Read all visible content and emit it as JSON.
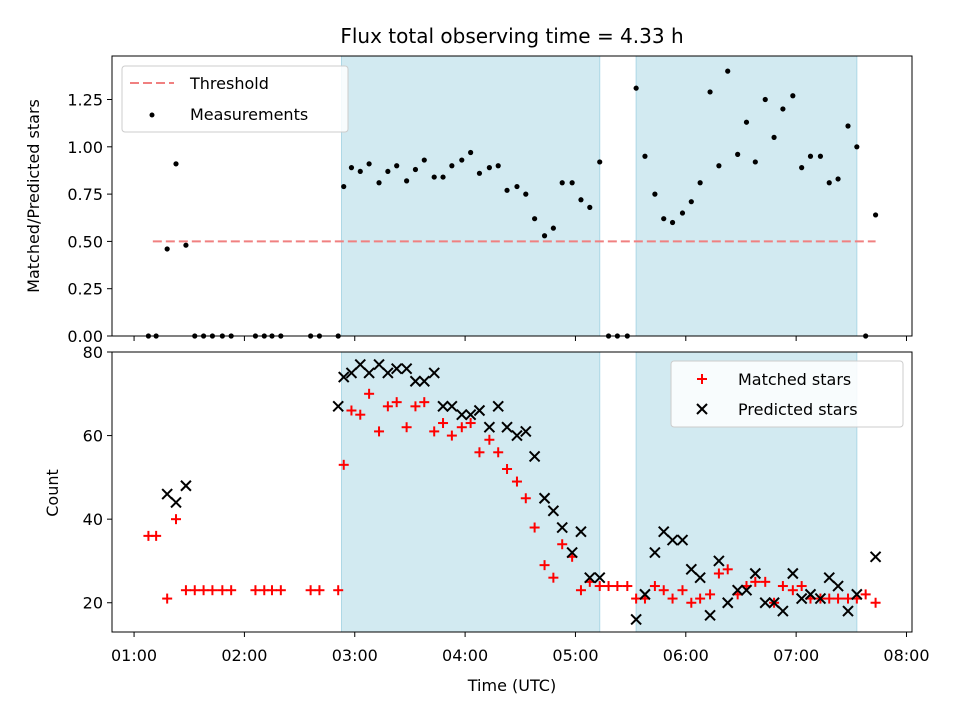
{
  "title": "Flux total observing time = 4.33 h",
  "colors": {
    "threshold": "#f08080",
    "measurement": "#000000",
    "matched": "#ff0000",
    "predicted": "#000000",
    "shade": "#add8e6"
  },
  "chart_data": [
    {
      "type": "scatter",
      "ylabel": "Matched/Predicted stars",
      "xlabel": "",
      "x_unit": "hours UTC",
      "xlim": [
        0.8,
        8.05
      ],
      "ylim": [
        0,
        1.48
      ],
      "yticks": [
        0.0,
        0.25,
        0.5,
        0.75,
        1.0,
        1.25
      ],
      "ytick_labels": [
        "0.00",
        "0.25",
        "0.50",
        "0.75",
        "1.00",
        "1.25"
      ],
      "xticks": [
        1,
        2,
        3,
        4,
        5,
        6,
        7,
        8
      ],
      "shaded_ranges": [
        [
          2.88,
          5.22
        ],
        [
          5.55,
          7.55
        ]
      ],
      "legend_position": "upper-left",
      "threshold": {
        "name": "Threshold",
        "value": 0.5,
        "x_range": [
          1.17,
          7.72
        ]
      },
      "series": [
        {
          "name": "Measurements",
          "x": [
            1.13,
            1.2,
            1.3,
            1.38,
            1.47,
            1.55,
            1.63,
            1.71,
            1.8,
            1.88,
            2.1,
            2.18,
            2.25,
            2.33,
            2.6,
            2.68,
            2.85,
            2.9,
            2.97,
            3.05,
            3.13,
            3.22,
            3.3,
            3.38,
            3.47,
            3.55,
            3.63,
            3.72,
            3.8,
            3.88,
            3.97,
            4.05,
            4.13,
            4.22,
            4.3,
            4.38,
            4.47,
            4.55,
            4.63,
            4.72,
            4.8,
            4.88,
            4.97,
            5.05,
            5.13,
            5.22,
            5.3,
            5.38,
            5.47,
            5.55,
            5.63,
            5.72,
            5.8,
            5.88,
            5.97,
            6.05,
            6.13,
            6.22,
            6.3,
            6.38,
            6.47,
            6.55,
            6.63,
            6.72,
            6.8,
            6.88,
            6.97,
            7.05,
            7.13,
            7.22,
            7.3,
            7.38,
            7.47,
            7.55,
            7.63,
            7.72
          ],
          "y": [
            0,
            0,
            0.46,
            0.91,
            0.48,
            0,
            0,
            0,
            0,
            0,
            0,
            0,
            0,
            0,
            0,
            0,
            0,
            0.79,
            0.89,
            0.87,
            0.91,
            0.81,
            0.87,
            0.9,
            0.82,
            0.88,
            0.93,
            0.84,
            0.84,
            0.9,
            0.93,
            0.97,
            0.86,
            0.89,
            0.9,
            0.77,
            0.79,
            0.75,
            0.62,
            0.53,
            0.57,
            0.81,
            0.81,
            0.72,
            0.68,
            0.92,
            0,
            0,
            0,
            1.31,
            0.95,
            0.75,
            0.62,
            0.6,
            0.65,
            0.71,
            0.81,
            1.29,
            0.9,
            1.4,
            0.96,
            1.13,
            0.92,
            1.25,
            1.05,
            1.2,
            1.27,
            0.89,
            0.95,
            0.95,
            0.81,
            0.83,
            1.11,
            1.0,
            0,
            0.64
          ]
        }
      ]
    },
    {
      "type": "scatter",
      "ylabel": "Count",
      "xlabel": "Time (UTC)",
      "x_unit": "hours UTC",
      "xlim": [
        0.8,
        8.05
      ],
      "ylim": [
        13,
        80
      ],
      "yticks": [
        20,
        40,
        60,
        80
      ],
      "ytick_labels": [
        "20",
        "40",
        "60",
        "80"
      ],
      "xticks": [
        1,
        2,
        3,
        4,
        5,
        6,
        7,
        8
      ],
      "xtick_labels": [
        "01:00",
        "02:00",
        "03:00",
        "04:00",
        "05:00",
        "06:00",
        "07:00",
        "08:00"
      ],
      "shaded_ranges": [
        [
          2.88,
          5.22
        ],
        [
          5.55,
          7.55
        ]
      ],
      "legend_position": "upper-right",
      "series": [
        {
          "name": "Matched stars",
          "x": [
            1.13,
            1.2,
            1.3,
            1.38,
            1.47,
            1.55,
            1.63,
            1.71,
            1.8,
            1.88,
            2.1,
            2.18,
            2.25,
            2.33,
            2.6,
            2.68,
            2.85,
            2.9,
            2.97,
            3.05,
            3.13,
            3.22,
            3.3,
            3.38,
            3.47,
            3.55,
            3.63,
            3.72,
            3.8,
            3.88,
            3.97,
            4.05,
            4.13,
            4.22,
            4.3,
            4.38,
            4.47,
            4.55,
            4.63,
            4.72,
            4.8,
            4.88,
            4.97,
            5.05,
            5.13,
            5.22,
            5.3,
            5.38,
            5.47,
            5.55,
            5.63,
            5.72,
            5.8,
            5.88,
            5.97,
            6.05,
            6.13,
            6.22,
            6.3,
            6.38,
            6.47,
            6.55,
            6.63,
            6.72,
            6.8,
            6.88,
            6.97,
            7.05,
            7.13,
            7.22,
            7.3,
            7.38,
            7.47,
            7.55,
            7.63,
            7.72
          ],
          "y": [
            36,
            36,
            21,
            40,
            23,
            23,
            23,
            23,
            23,
            23,
            23,
            23,
            23,
            23,
            23,
            23,
            23,
            53,
            66,
            65,
            70,
            61,
            67,
            68,
            62,
            67,
            68,
            61,
            63,
            60,
            62,
            63,
            56,
            59,
            56,
            52,
            49,
            45,
            38,
            29,
            26,
            34,
            31,
            23,
            25,
            24,
            24,
            24,
            24,
            21,
            21,
            24,
            23,
            21,
            23,
            20,
            21,
            22,
            27,
            28,
            22,
            24,
            25,
            25,
            20,
            24,
            23,
            24,
            21,
            21,
            21,
            21,
            21,
            21,
            22,
            20
          ]
        },
        {
          "name": "Predicted stars",
          "x": [
            1.3,
            1.38,
            1.47,
            2.85,
            2.9,
            2.97,
            3.05,
            3.13,
            3.22,
            3.3,
            3.38,
            3.47,
            3.55,
            3.63,
            3.72,
            3.8,
            3.88,
            3.97,
            4.05,
            4.13,
            4.22,
            4.3,
            4.38,
            4.47,
            4.55,
            4.63,
            4.72,
            4.8,
            4.88,
            4.97,
            5.05,
            5.13,
            5.22,
            5.55,
            5.63,
            5.72,
            5.8,
            5.88,
            5.97,
            6.05,
            6.13,
            6.22,
            6.3,
            6.38,
            6.47,
            6.55,
            6.63,
            6.72,
            6.8,
            6.88,
            6.97,
            7.05,
            7.13,
            7.22,
            7.3,
            7.38,
            7.47,
            7.55,
            7.72
          ],
          "y": [
            46,
            44,
            48,
            67,
            74,
            75,
            77,
            75,
            77,
            75,
            76,
            76,
            73,
            73,
            75,
            67,
            67,
            65,
            65,
            66,
            62,
            67,
            62,
            60,
            61,
            55,
            45,
            42,
            38,
            32,
            37,
            26,
            26,
            16,
            22,
            32,
            37,
            35,
            35,
            28,
            26,
            17,
            30,
            20,
            23,
            23,
            27,
            20,
            20,
            18,
            27,
            21,
            22,
            21,
            26,
            24,
            18,
            22,
            31
          ]
        }
      ]
    }
  ]
}
